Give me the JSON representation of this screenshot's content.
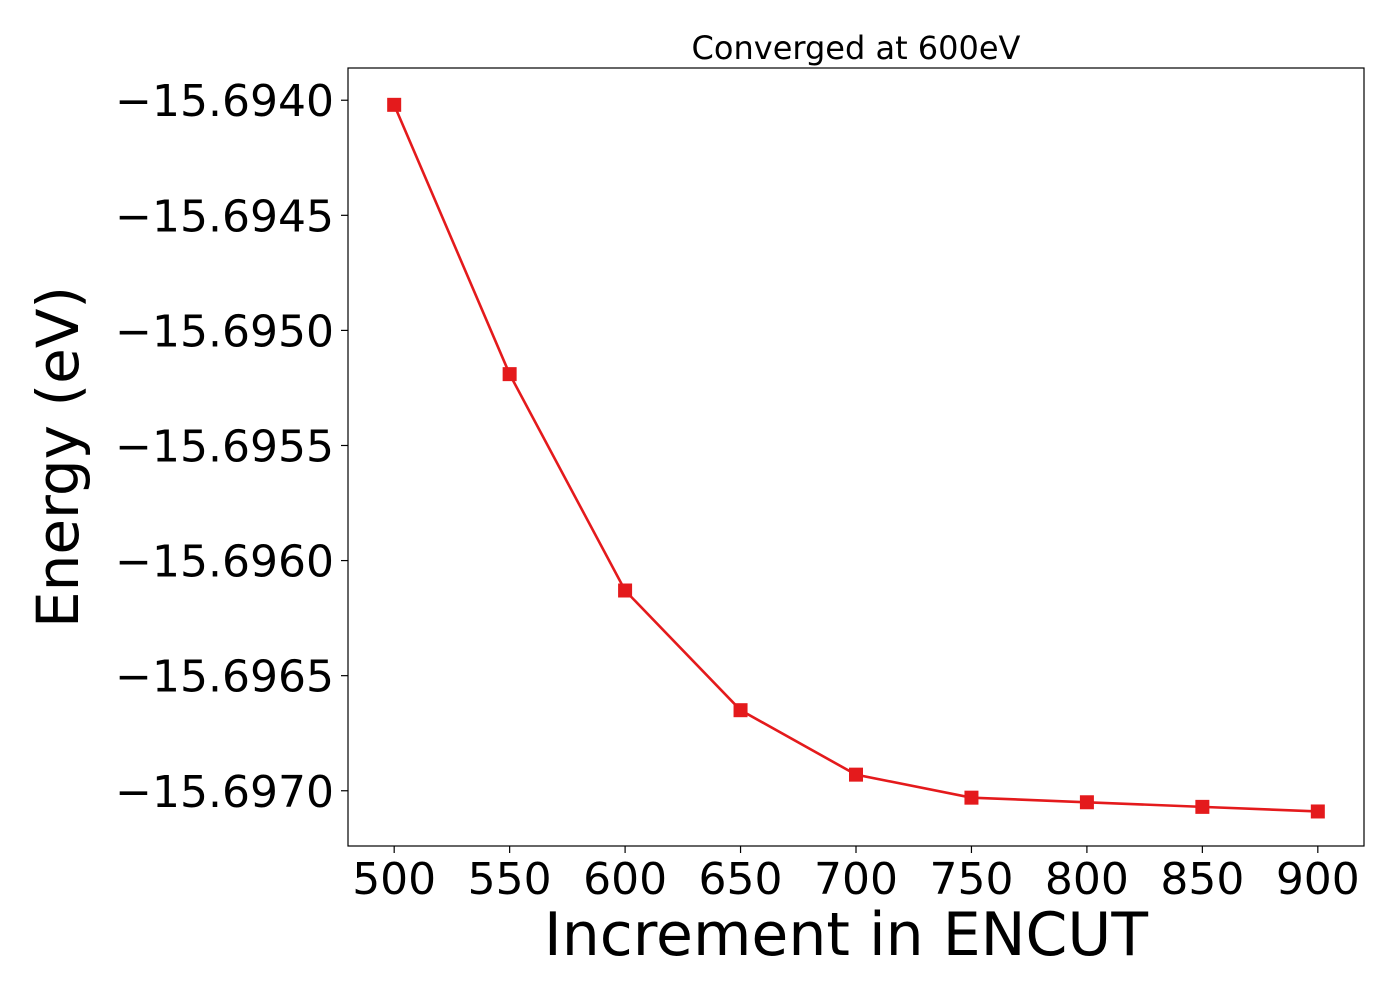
{
  "chart_data": {
    "type": "line",
    "title": "Converged at 600eV",
    "xlabel": "Increment in ENCUT",
    "ylabel": "Energy (eV)",
    "x": [
      500,
      550,
      600,
      650,
      700,
      750,
      800,
      850,
      900
    ],
    "series": [
      {
        "values": [
          -15.69402,
          -15.69519,
          -15.69613,
          -15.69665,
          -15.69693,
          -15.69703,
          -15.69705,
          -15.69707,
          -15.69709
        ],
        "color": "#e41a1c",
        "marker": "square"
      }
    ],
    "xlim": [
      480,
      920
    ],
    "ylim": [
      -15.69724,
      -15.69386
    ],
    "xticks": [
      500,
      550,
      600,
      650,
      700,
      750,
      800,
      850,
      900
    ],
    "xtick_labels": [
      "500",
      "550",
      "600",
      "650",
      "700",
      "750",
      "800",
      "850",
      "900"
    ],
    "yticks": [
      -15.694,
      -15.6945,
      -15.695,
      -15.6955,
      -15.696,
      -15.6965,
      -15.697
    ],
    "ytick_labels": [
      "−15.6940",
      "−15.6945",
      "−15.6950",
      "−15.6955",
      "−15.6960",
      "−15.6965",
      "−15.6970"
    ],
    "grid": false,
    "legend": "none"
  }
}
